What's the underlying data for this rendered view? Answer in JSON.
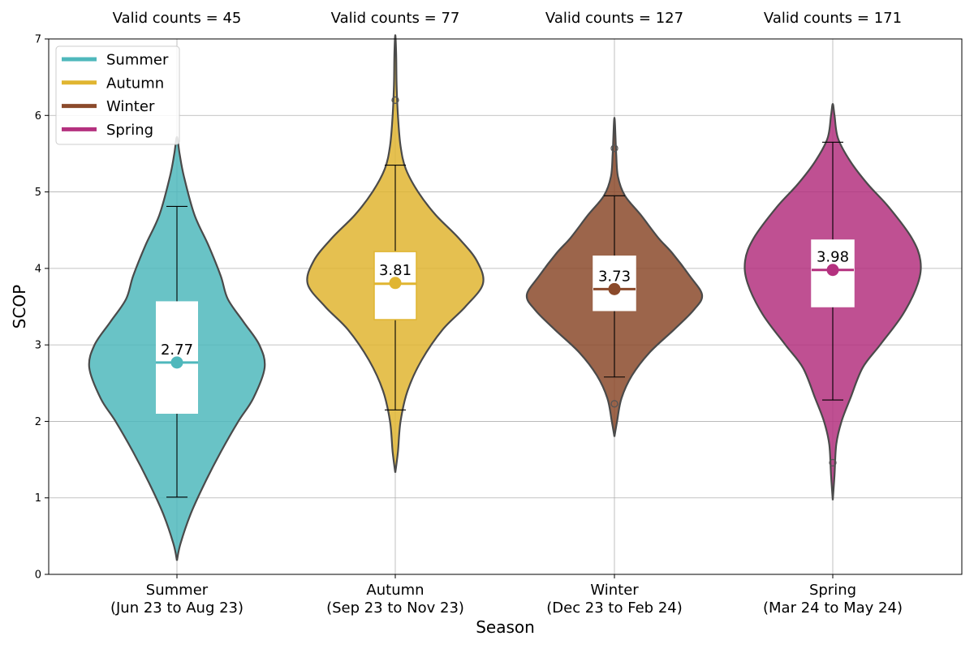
{
  "chart_data": {
    "type": "violin",
    "title": "",
    "xlabel": "Season",
    "ylabel": "SCOP",
    "ylim": [
      0,
      7
    ],
    "yticks": [
      0,
      1,
      2,
      3,
      4,
      5,
      6,
      7
    ],
    "grid": true,
    "legend": {
      "placement": "top-left",
      "entries": [
        "Summer",
        "Autumn",
        "Winter",
        "Spring"
      ]
    },
    "categories": [
      "Summer\n(Jun 23 to Aug 23)",
      "Autumn\n(Sep 23 to Nov 23)",
      "Winter\n(Dec 23 to Feb 24)",
      "Spring\n(Mar 24 to May 24)"
    ],
    "series": [
      {
        "name": "Summer",
        "category_line1": "Summer",
        "category_line2": "(Jun 23 to Aug 23)",
        "count_label": "Valid counts = 45",
        "color": "#4fb8bc",
        "mean": 2.77,
        "mean_label": "2.77",
        "median": 2.77,
        "q1": 2.1,
        "q3": 3.57,
        "whisker_low": 1.01,
        "whisker_high": 4.81,
        "outliers": [],
        "density": {
          "y": [
            0.18,
            0.4,
            0.8,
            1.2,
            1.6,
            2.0,
            2.3,
            2.7,
            3.0,
            3.3,
            3.6,
            3.9,
            4.3,
            4.7,
            5.2,
            5.5,
            5.72
          ],
          "w": [
            0,
            0.04,
            0.16,
            0.32,
            0.5,
            0.7,
            0.87,
            1.0,
            0.94,
            0.76,
            0.58,
            0.5,
            0.36,
            0.2,
            0.08,
            0.03,
            0
          ]
        }
      },
      {
        "name": "Autumn",
        "category_line1": "Autumn",
        "category_line2": "(Sep 23 to Nov 23)",
        "count_label": "Valid counts = 77",
        "color": "#e0b531",
        "mean": 3.81,
        "mean_label": "3.81",
        "median": 3.8,
        "q1": 3.33,
        "q3": 4.22,
        "whisker_low": 2.15,
        "whisker_high": 5.35,
        "outliers": [
          6.2
        ],
        "density": {
          "y": [
            1.33,
            1.6,
            2.0,
            2.4,
            2.8,
            3.2,
            3.5,
            3.8,
            4.1,
            4.4,
            4.7,
            5.0,
            5.3,
            5.6,
            6.0,
            6.4,
            6.8,
            7.05
          ],
          "w": [
            0,
            0.03,
            0.06,
            0.14,
            0.3,
            0.54,
            0.8,
            1.0,
            0.93,
            0.72,
            0.46,
            0.26,
            0.12,
            0.06,
            0.03,
            0.015,
            0.01,
            0
          ]
        }
      },
      {
        "name": "Winter",
        "category_line1": "Winter",
        "category_line2": "(Dec 23 to Feb 24)",
        "count_label": "Valid counts = 127",
        "color": "#8b4a2b",
        "mean": 3.73,
        "mean_label": "3.73",
        "median": 3.73,
        "q1": 3.45,
        "q3": 4.16,
        "whisker_low": 2.58,
        "whisker_high": 4.95,
        "outliers": [
          2.23,
          5.57
        ],
        "density": {
          "y": [
            1.8,
            2.0,
            2.3,
            2.6,
            2.9,
            3.2,
            3.45,
            3.65,
            3.9,
            4.2,
            4.4,
            4.7,
            4.95,
            5.2,
            5.5,
            5.97
          ],
          "w": [
            0,
            0.03,
            0.08,
            0.2,
            0.4,
            0.68,
            0.9,
            1.0,
            0.86,
            0.66,
            0.5,
            0.3,
            0.12,
            0.04,
            0.02,
            0
          ]
        }
      },
      {
        "name": "Spring",
        "category_line1": "Spring",
        "category_line2": "(Mar 24 to May 24)",
        "count_label": "Valid counts = 171",
        "color": "#b4317f",
        "mean": 3.98,
        "mean_label": "3.98",
        "median": 3.98,
        "q1": 3.5,
        "q3": 4.37,
        "whisker_low": 2.28,
        "whisker_high": 5.65,
        "outliers": [
          1.46
        ],
        "density": {
          "y": [
            0.97,
            1.3,
            1.7,
            2.0,
            2.3,
            2.7,
            3.0,
            3.4,
            3.8,
            4.1,
            4.4,
            4.8,
            5.1,
            5.4,
            5.7,
            6.0,
            6.15
          ],
          "w": [
            0,
            0.02,
            0.04,
            0.1,
            0.2,
            0.34,
            0.54,
            0.8,
            0.97,
            1.0,
            0.9,
            0.64,
            0.4,
            0.2,
            0.06,
            0.02,
            0
          ]
        }
      }
    ]
  }
}
